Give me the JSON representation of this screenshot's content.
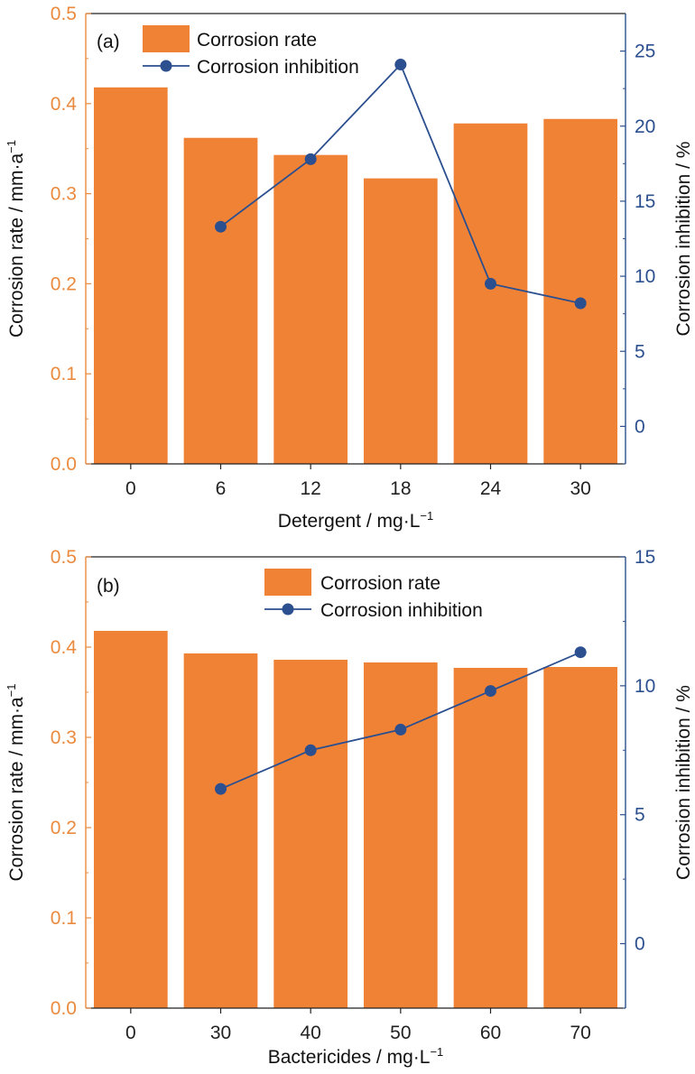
{
  "colors": {
    "bar": "#f08236",
    "line": "#2b4f8f",
    "left_axis": "#ea8a3e",
    "right_axis": "#2b4f8f",
    "frame": "#222222"
  },
  "chart_data": [
    {
      "type": "bar+line",
      "panel_label": "(a)",
      "categories": [
        "0",
        "6",
        "12",
        "18",
        "24",
        "30"
      ],
      "x_title": "Detergent / mg·L",
      "x_title_sup": "−1",
      "y_left_title": "Corrosion rate / mm·a",
      "y_left_title_sup": "−1",
      "y_right_title": "Corrosion inhibition / %",
      "y_left_lim": [
        0,
        0.5
      ],
      "y_left_ticks": [
        "0.0",
        "0.1",
        "0.2",
        "0.3",
        "0.4",
        "0.5"
      ],
      "y_right_lim": [
        -2.5,
        27.5
      ],
      "y_right_ticks": [
        "0",
        "5",
        "10",
        "15",
        "20",
        "25"
      ],
      "legend_position": "top-left",
      "series": [
        {
          "name": "Corrosion rate",
          "kind": "bar",
          "values": [
            0.418,
            0.362,
            0.343,
            0.317,
            0.378,
            0.383
          ]
        },
        {
          "name": "Corrosion inhibition",
          "kind": "line",
          "values": [
            null,
            13.3,
            17.8,
            24.1,
            9.5,
            8.2
          ]
        }
      ]
    },
    {
      "type": "bar+line",
      "panel_label": "(b)",
      "categories": [
        "0",
        "30",
        "40",
        "50",
        "60",
        "70"
      ],
      "x_title": "Bactericides / mg·L",
      "x_title_sup": "−1",
      "y_left_title": "Corrosion rate / mm·a",
      "y_left_title_sup": "−1",
      "y_right_title": "Corrosion inhibition / %",
      "y_left_lim": [
        0,
        0.5
      ],
      "y_left_ticks": [
        "0.0",
        "0.1",
        "0.2",
        "0.3",
        "0.4",
        "0.5"
      ],
      "y_right_lim": [
        -2.5,
        15
      ],
      "y_right_ticks": [
        "0",
        "5",
        "10",
        "15"
      ],
      "legend_position": "top-center",
      "series": [
        {
          "name": "Corrosion rate",
          "kind": "bar",
          "values": [
            0.418,
            0.393,
            0.386,
            0.383,
            0.377,
            0.378
          ]
        },
        {
          "name": "Corrosion inhibition",
          "kind": "line",
          "values": [
            null,
            6.0,
            7.5,
            8.3,
            9.8,
            11.3
          ]
        }
      ]
    }
  ]
}
